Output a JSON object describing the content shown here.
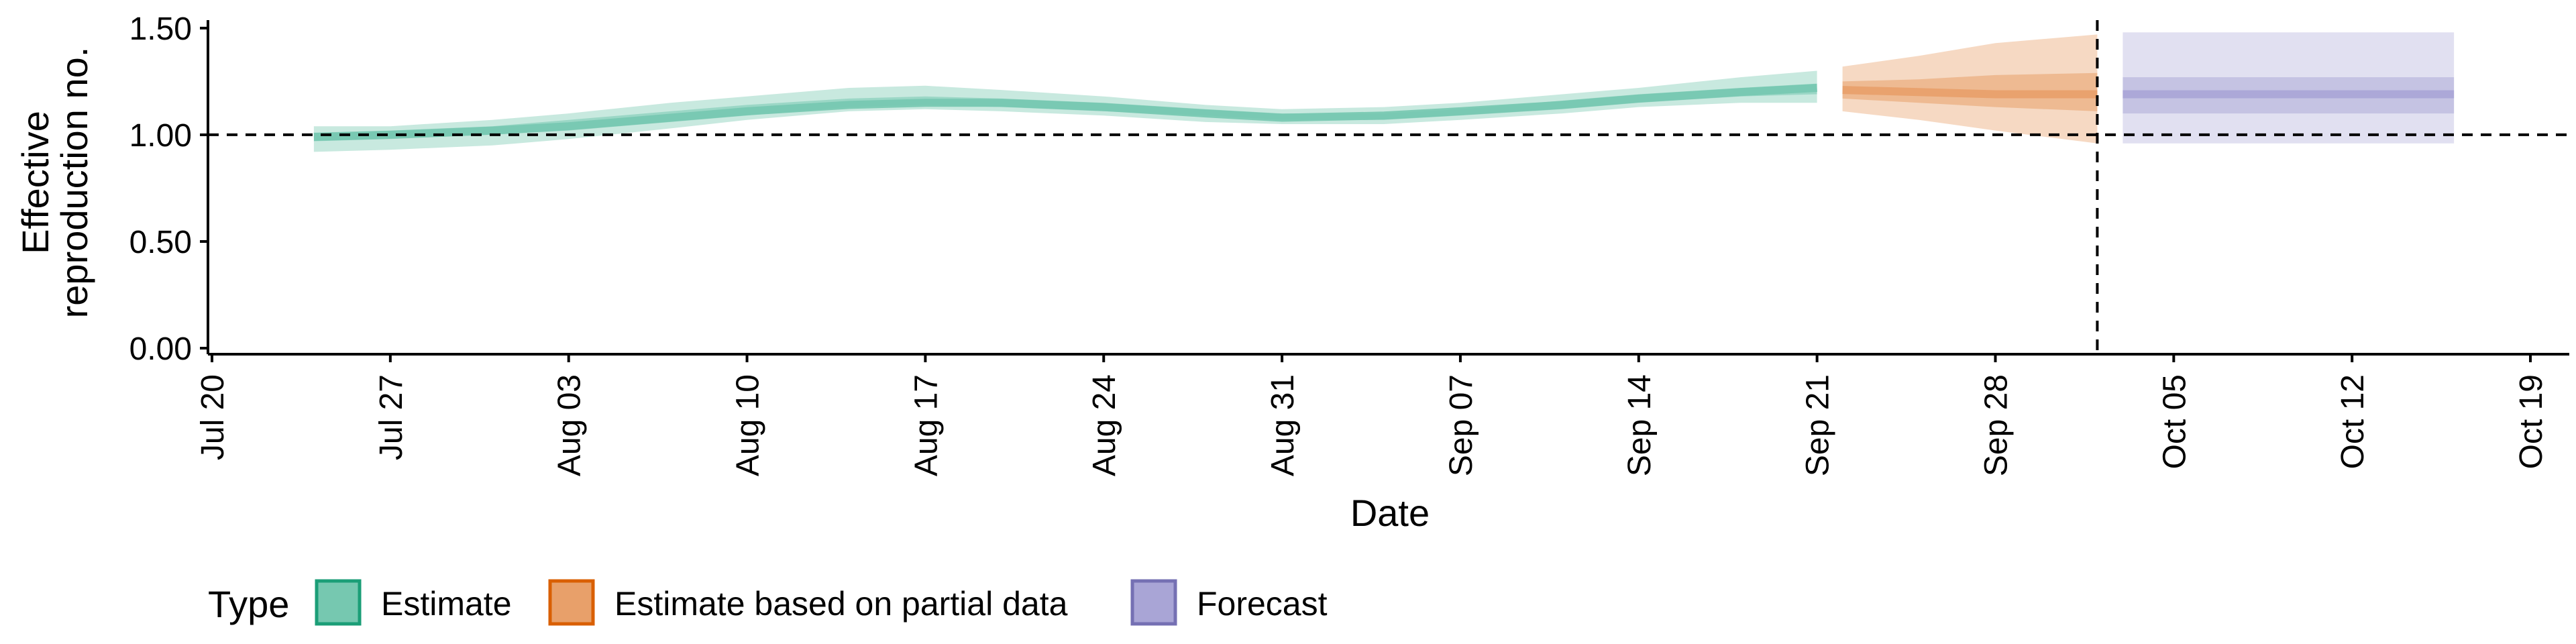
{
  "chart_data": {
    "type": "area",
    "xlabel": "Date",
    "ylabel": [
      "Effective",
      "reproduction no."
    ],
    "ylim": [
      0,
      1.55
    ],
    "yticks": [
      0.0,
      0.5,
      1.0,
      1.5
    ],
    "ytick_labels": [
      "0.00",
      "0.50",
      "1.00",
      "1.50"
    ],
    "x_range": [
      "2020-07-20",
      "2020-10-20"
    ],
    "xticks": [
      "2020-07-20",
      "2020-07-27",
      "2020-08-03",
      "2020-08-10",
      "2020-08-17",
      "2020-08-24",
      "2020-08-31",
      "2020-09-07",
      "2020-09-14",
      "2020-09-21",
      "2020-09-28",
      "2020-10-05",
      "2020-10-12",
      "2020-10-19"
    ],
    "xtick_labels": [
      "Jul 20",
      "Jul 27",
      "Aug 03",
      "Aug 10",
      "Aug 17",
      "Aug 24",
      "Aug 31",
      "Sep 07",
      "Sep 14",
      "Sep 21",
      "Sep 28",
      "Oct 05",
      "Oct 12",
      "Oct 19"
    ],
    "reference_hline": 1.0,
    "reference_vline": "2020-10-02",
    "legend_position": "bottom-left",
    "legend_title": "Type",
    "series": [
      {
        "name": "Estimate",
        "color": "#1b9e77",
        "fill": "#76c8b0",
        "dates": [
          "2020-07-24",
          "2020-07-27",
          "2020-07-31",
          "2020-08-03",
          "2020-08-07",
          "2020-08-10",
          "2020-08-14",
          "2020-08-17",
          "2020-08-20",
          "2020-08-24",
          "2020-08-28",
          "2020-08-31",
          "2020-09-04",
          "2020-09-07",
          "2020-09-11",
          "2020-09-14",
          "2020-09-18",
          "2020-09-21"
        ],
        "median": [
          0.99,
          1.0,
          1.02,
          1.04,
          1.08,
          1.11,
          1.14,
          1.15,
          1.15,
          1.13,
          1.1,
          1.08,
          1.09,
          1.11,
          1.14,
          1.17,
          1.2,
          1.22
        ],
        "lower_90": [
          0.92,
          0.93,
          0.95,
          0.98,
          1.03,
          1.07,
          1.11,
          1.12,
          1.11,
          1.09,
          1.06,
          1.05,
          1.05,
          1.07,
          1.1,
          1.13,
          1.15,
          1.15
        ],
        "upper_90": [
          1.04,
          1.04,
          1.07,
          1.1,
          1.15,
          1.18,
          1.22,
          1.23,
          1.21,
          1.18,
          1.14,
          1.12,
          1.13,
          1.15,
          1.19,
          1.22,
          1.27,
          1.3
        ],
        "lower_50": [
          0.97,
          0.98,
          1.0,
          1.02,
          1.06,
          1.09,
          1.13,
          1.14,
          1.13,
          1.11,
          1.09,
          1.07,
          1.07,
          1.09,
          1.12,
          1.15,
          1.18,
          1.19
        ],
        "upper_50": [
          1.01,
          1.02,
          1.04,
          1.07,
          1.11,
          1.14,
          1.17,
          1.18,
          1.17,
          1.15,
          1.12,
          1.1,
          1.1,
          1.12,
          1.16,
          1.19,
          1.22,
          1.24
        ]
      },
      {
        "name": "Estimate based on partial data",
        "color": "#d95f02",
        "fill": "#e8a06a",
        "dates": [
          "2020-09-22",
          "2020-09-25",
          "2020-09-28",
          "2020-10-02"
        ],
        "median": [
          1.21,
          1.2,
          1.19,
          1.19
        ],
        "lower_90": [
          1.11,
          1.07,
          1.02,
          0.96
        ],
        "upper_90": [
          1.32,
          1.37,
          1.43,
          1.47
        ],
        "lower_50": [
          1.17,
          1.15,
          1.13,
          1.11
        ],
        "upper_50": [
          1.25,
          1.26,
          1.28,
          1.29
        ]
      },
      {
        "name": "Forecast",
        "color": "#7570b3",
        "fill": "#a9a5d6",
        "dates": [
          "2020-10-03",
          "2020-10-16"
        ],
        "median": [
          1.19,
          1.19
        ],
        "lower_90": [
          0.96,
          0.96
        ],
        "upper_90": [
          1.48,
          1.48
        ],
        "lower_50": [
          1.1,
          1.1
        ],
        "upper_50": [
          1.27,
          1.27
        ]
      }
    ]
  }
}
